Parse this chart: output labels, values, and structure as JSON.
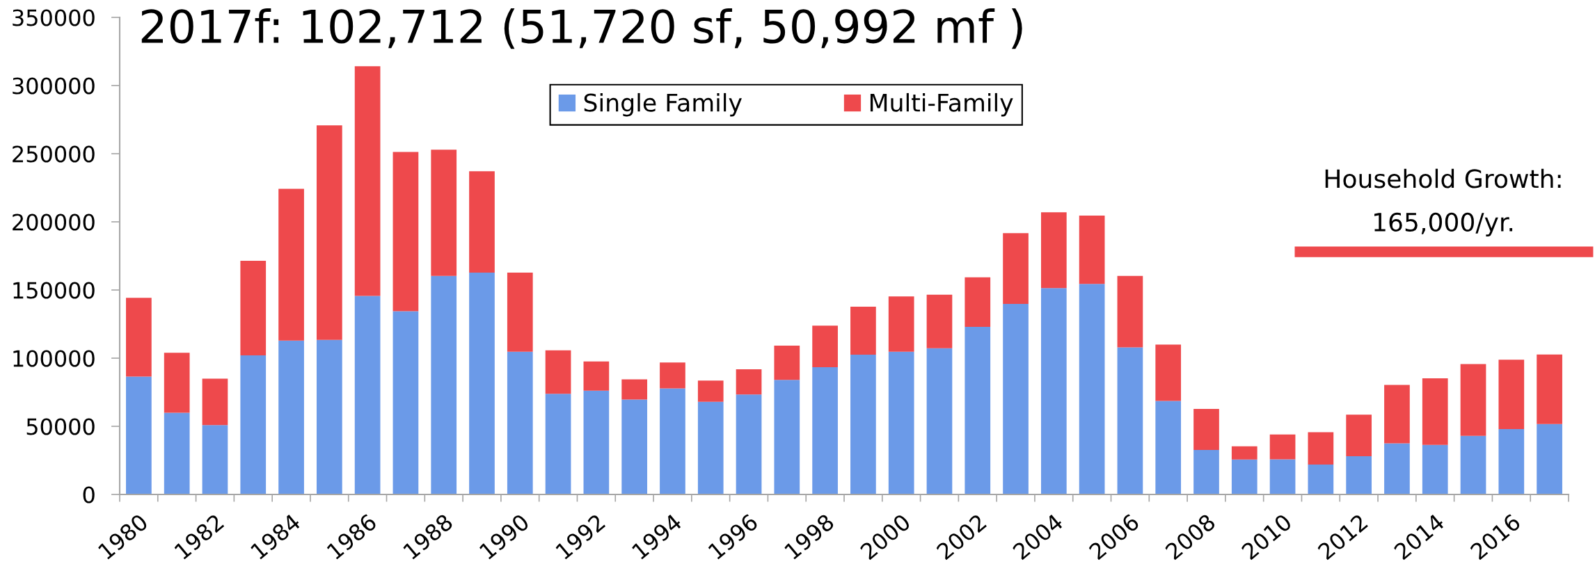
{
  "chart_data": {
    "type": "bar",
    "title": "2017f: 102,712 (51,720 sf, 50,992 mf )",
    "categories": [
      "1980",
      null,
      "1982",
      null,
      "1984",
      null,
      "1986",
      null,
      "1988",
      null,
      "1990",
      null,
      "1992",
      null,
      "1994",
      null,
      "1996",
      null,
      "1998",
      null,
      "2000",
      null,
      "2002",
      null,
      "2004",
      null,
      "2006",
      null,
      "2008",
      null,
      "2010",
      null,
      "2012",
      null,
      "2014",
      null,
      "2016",
      null
    ],
    "series": [
      {
        "name": "Single Family",
        "color": "#6b9ae8",
        "values": [
          86500,
          59900,
          50900,
          102000,
          112900,
          113400,
          145600,
          134500,
          160300,
          162700,
          104700,
          73800,
          76200,
          69600,
          77800,
          68000,
          73300,
          84100,
          93400,
          102600,
          104700,
          107300,
          122900,
          139800,
          151400,
          154500,
          107900,
          68600,
          32700,
          25600,
          25800,
          21900,
          28000,
          37500,
          36400,
          43000,
          48000,
          51700
        ]
      },
      {
        "name": "Multi-Family",
        "color": "#ee494c",
        "values": [
          57700,
          44000,
          34000,
          69400,
          111300,
          157400,
          168500,
          116800,
          92600,
          74400,
          58000,
          31900,
          21400,
          14800,
          19000,
          15600,
          18500,
          25100,
          30500,
          35100,
          40600,
          39300,
          36400,
          51900,
          55600,
          50100,
          52400,
          41400,
          30100,
          9700,
          18200,
          23700,
          30500,
          42900,
          48800,
          52700,
          50900,
          51000
        ]
      }
    ],
    "stacked": true,
    "ylim": [
      0,
      350000
    ],
    "yticks": [
      0,
      50000,
      100000,
      150000,
      200000,
      250000,
      300000,
      350000
    ],
    "legend": "top",
    "ref_lines": [
      {
        "axis": "y",
        "value": 178000,
        "color": "#ee494c",
        "line_style": "solid"
      }
    ],
    "annotations": [
      "Household Growth:\n165,000/yr."
    ]
  }
}
